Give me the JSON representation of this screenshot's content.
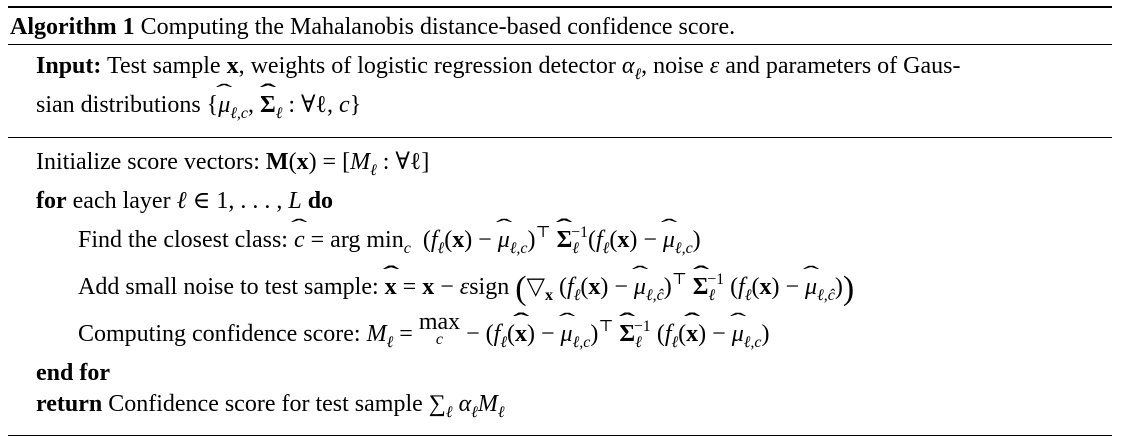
{
  "caption": {
    "label": "Algorithm 1",
    "title": "Computing the Mahalanobis distance-based confidence score."
  },
  "input": {
    "label": "Input:",
    "line1": "Test sample x, weights of logistic regression detector αℓ, noise ε and parameters of Gaus-",
    "line2": "sian distributions {μ̂ℓ,c, Σ̂ℓ : ∀ℓ, c}"
  },
  "body": {
    "init": "Initialize score vectors: M(x) = [Mℓ : ∀ℓ]",
    "for_keyword": "for",
    "for_text": "each layer ℓ ∈ 1, . . . , L",
    "do_keyword": "do",
    "step1": "Find the closest class: ĉ = arg min_c (fℓ(x) − μ̂ℓ,c)ᵀ Σ̂ℓ⁻¹ (fℓ(x) − μ̂ℓ,c)",
    "step2": "Add small noise to test sample: x̂ = x − εsign(∇x (fℓ(x) − μ̂ℓ,ĉ)ᵀ Σ̂ℓ⁻¹ (fℓ(x) − μ̂ℓ,ĉ))",
    "step3": "Computing confidence score: Mℓ = max_c − (fℓ(x̂) − μ̂ℓ,c)ᵀ Σ̂ℓ⁻¹ (fℓ(x̂) − μ̂ℓ,c)",
    "end_for": "end for",
    "return_keyword": "return",
    "return_text": "Confidence score for test sample ∑ℓ αℓMℓ"
  }
}
